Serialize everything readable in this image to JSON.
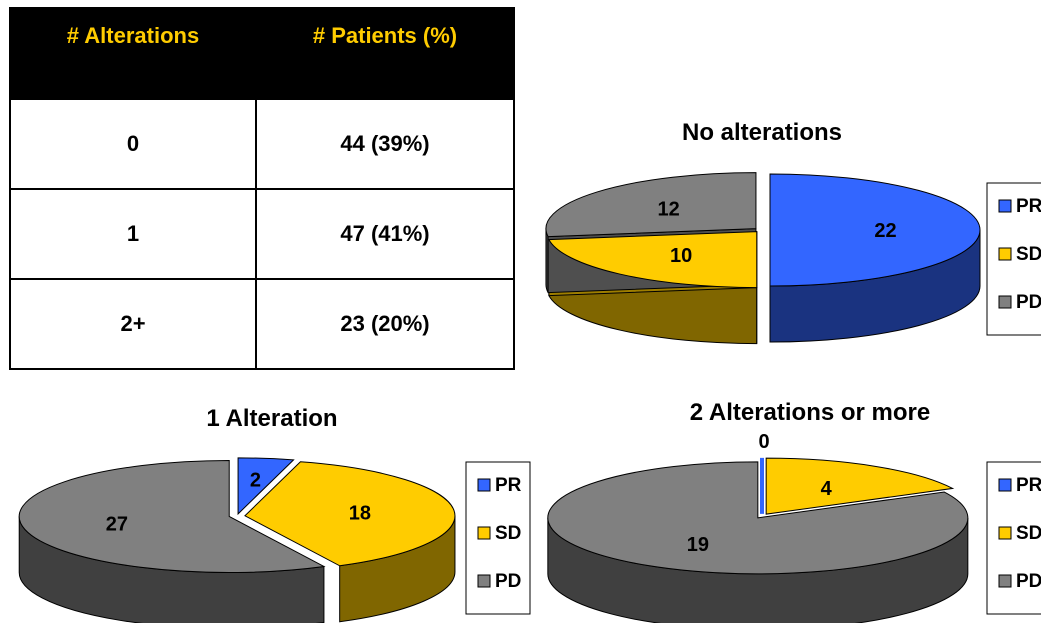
{
  "table": {
    "headers": [
      "# Alterations",
      "# Patients (%)"
    ],
    "rows": [
      [
        "0",
        "44 (39%)"
      ],
      [
        "1",
        "47 (41%)"
      ],
      [
        "2+",
        "23 (20%)"
      ]
    ]
  },
  "colors": {
    "header_bg": "#000000",
    "header_text": "#ffcc00",
    "PR": "#3366ff",
    "SD": "#ffcc00",
    "PD": "#808080"
  },
  "chart_data": [
    {
      "type": "pie",
      "title": "No alterations",
      "categories": [
        "PR",
        "SD",
        "PD"
      ],
      "values": [
        22,
        10,
        12
      ],
      "legend": [
        "PR",
        "SD",
        "PD"
      ],
      "legend_position": "right",
      "three_d": true
    },
    {
      "type": "pie",
      "title": "1 Alteration",
      "categories": [
        "PR",
        "SD",
        "PD"
      ],
      "values": [
        2,
        18,
        27
      ],
      "legend": [
        "PR",
        "SD",
        "PD"
      ],
      "legend_position": "right",
      "three_d": true
    },
    {
      "type": "pie",
      "title": "2 Alterations or more",
      "categories": [
        "PR",
        "SD",
        "PD"
      ],
      "values": [
        0,
        4,
        19
      ],
      "legend": [
        "PR",
        "SD",
        "PD"
      ],
      "legend_position": "right",
      "three_d": true
    }
  ]
}
